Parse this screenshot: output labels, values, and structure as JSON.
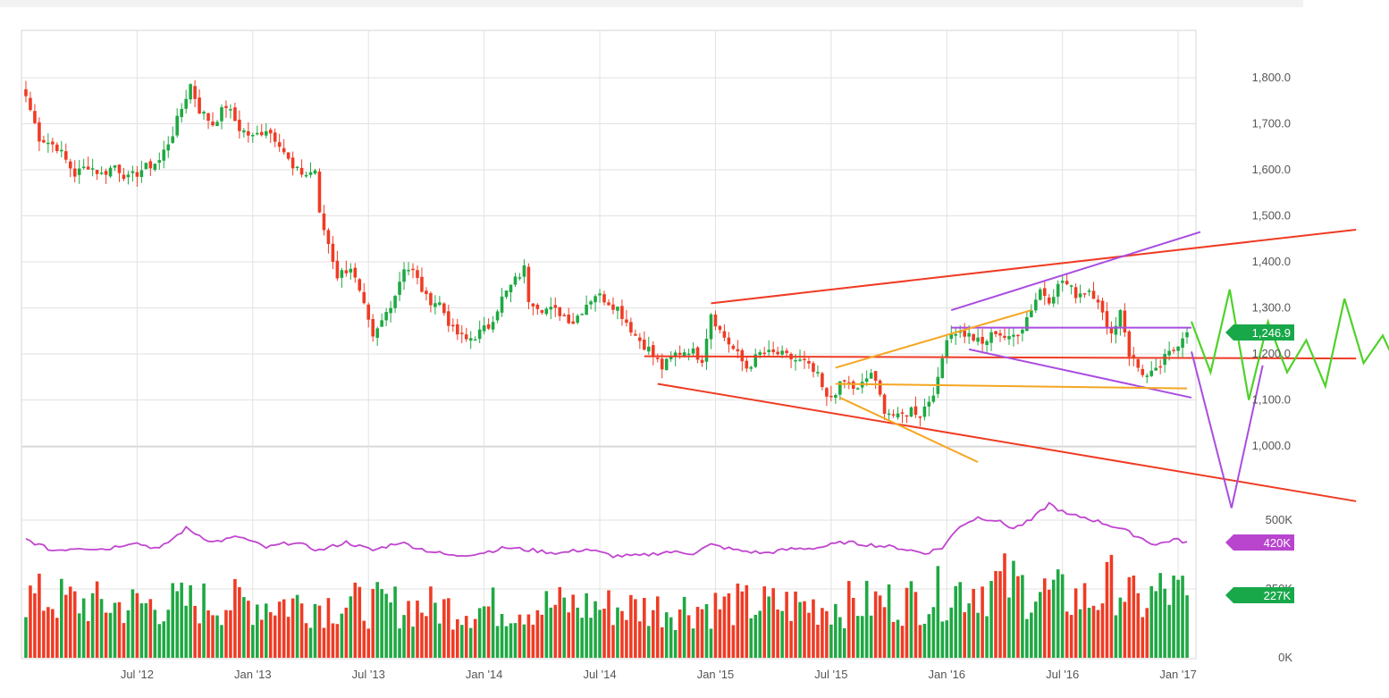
{
  "chart_data": [
    {
      "type": "candlestick",
      "panel": "price",
      "title": "",
      "y_ticks": [
        {
          "label": "1,800.0",
          "value": 1800
        },
        {
          "label": "1,700.0",
          "value": 1700
        },
        {
          "label": "1,600.0",
          "value": 1600
        },
        {
          "label": "1,500.0",
          "value": 1500
        },
        {
          "label": "1,400.0",
          "value": 1400
        },
        {
          "label": "1,300.0",
          "value": 1300
        },
        {
          "label": "1,200.0",
          "value": 1200
        },
        {
          "label": "1,100.0",
          "value": 1100
        },
        {
          "label": "1,000.0",
          "value": 1000
        }
      ],
      "ylim": [
        980,
        1880
      ],
      "x_ticks": [
        {
          "label": "Jul '12",
          "week": 25
        },
        {
          "label": "Jan '13",
          "week": 51
        },
        {
          "label": "Jul '13",
          "week": 77
        },
        {
          "label": "Jan '14",
          "week": 103
        },
        {
          "label": "Jul '14",
          "week": 129
        },
        {
          "label": "Jan '15",
          "week": 155
        },
        {
          "label": "Jul '15",
          "week": 181
        },
        {
          "label": "Jan '16",
          "week": 207
        },
        {
          "label": "Jul '16",
          "week": 233
        },
        {
          "label": "Jan '17",
          "week": 259
        }
      ],
      "xlim": [
        -1,
        263
      ],
      "weekly_close_anchors": [
        [
          0,
          1760
        ],
        [
          3,
          1670
        ],
        [
          7,
          1650
        ],
        [
          11,
          1590
        ],
        [
          14,
          1610
        ],
        [
          17,
          1590
        ],
        [
          20,
          1610
        ],
        [
          23,
          1580
        ],
        [
          26,
          1600
        ],
        [
          30,
          1620
        ],
        [
          33,
          1680
        ],
        [
          36,
          1760
        ],
        [
          37,
          1785
        ],
        [
          39,
          1730
        ],
        [
          42,
          1700
        ],
        [
          45,
          1740
        ],
        [
          48,
          1690
        ],
        [
          51,
          1670
        ],
        [
          54,
          1690
        ],
        [
          57,
          1660
        ],
        [
          60,
          1600
        ],
        [
          63,
          1590
        ],
        [
          65,
          1600
        ],
        [
          66,
          1500
        ],
        [
          68,
          1440
        ],
        [
          70,
          1370
        ],
        [
          73,
          1390
        ],
        [
          76,
          1300
        ],
        [
          78,
          1230
        ],
        [
          80,
          1270
        ],
        [
          83,
          1330
        ],
        [
          85,
          1390
        ],
        [
          87,
          1380
        ],
        [
          90,
          1320
        ],
        [
          93,
          1310
        ],
        [
          96,
          1250
        ],
        [
          99,
          1230
        ],
        [
          101,
          1240
        ],
        [
          104,
          1260
        ],
        [
          107,
          1320
        ],
        [
          110,
          1360
        ],
        [
          112,
          1385
        ],
        [
          113,
          1320
        ],
        [
          116,
          1300
        ],
        [
          120,
          1290
        ],
        [
          123,
          1270
        ],
        [
          126,
          1310
        ],
        [
          128,
          1330
        ],
        [
          130,
          1320
        ],
        [
          133,
          1300
        ],
        [
          137,
          1240
        ],
        [
          140,
          1210
        ],
        [
          143,
          1170
        ],
        [
          146,
          1200
        ],
        [
          149,
          1210
        ],
        [
          152,
          1190
        ],
        [
          154,
          1290
        ],
        [
          156,
          1250
        ],
        [
          159,
          1210
        ],
        [
          162,
          1170
        ],
        [
          165,
          1200
        ],
        [
          169,
          1200
        ],
        [
          172,
          1190
        ],
        [
          175,
          1180
        ],
        [
          178,
          1150
        ],
        [
          180,
          1100
        ],
        [
          182,
          1120
        ],
        [
          184,
          1140
        ],
        [
          187,
          1120
        ],
        [
          190,
          1160
        ],
        [
          193,
          1080
        ],
        [
          196,
          1060
        ],
        [
          199,
          1080
        ],
        [
          201,
          1070
        ],
        [
          203,
          1100
        ],
        [
          205,
          1140
        ],
        [
          207,
          1240
        ],
        [
          209,
          1250
        ],
        [
          212,
          1240
        ],
        [
          215,
          1220
        ],
        [
          218,
          1250
        ],
        [
          221,
          1230
        ],
        [
          224,
          1260
        ],
        [
          226,
          1300
        ],
        [
          228,
          1340
        ],
        [
          230,
          1320
        ],
        [
          233,
          1360
        ],
        [
          236,
          1330
        ],
        [
          239,
          1340
        ],
        [
          241,
          1320
        ],
        [
          243,
          1250
        ],
        [
          245,
          1260
        ],
        [
          246,
          1300
        ],
        [
          248,
          1200
        ],
        [
          250,
          1170
        ],
        [
          252,
          1150
        ],
        [
          254,
          1160
        ],
        [
          256,
          1190
        ],
        [
          258,
          1210
        ],
        [
          260,
          1240
        ],
        [
          261,
          1246.9
        ]
      ],
      "annotations": {
        "last_price_label": "1,246.9",
        "projection_zigzag_prices": [
          1270,
          1160,
          1340,
          1100,
          1270,
          1160,
          1230,
          1130,
          1320,
          1180,
          1240,
          1150
        ]
      },
      "colors": {
        "up": "#1fa843",
        "down": "#ef3b24",
        "last_price_badge": "#18a84a"
      }
    },
    {
      "type": "bar",
      "panel": "volume",
      "y_ticks": [
        {
          "label": "500K",
          "value": 500
        },
        {
          "label": "250K",
          "value": 250
        },
        {
          "label": "0K",
          "value": 0
        }
      ],
      "ylim": [
        0,
        575
      ],
      "units": "K",
      "volume_anchors": [
        [
          0,
          220
        ],
        [
          20,
          190
        ],
        [
          40,
          200
        ],
        [
          60,
          200
        ],
        [
          80,
          190
        ],
        [
          100,
          180
        ],
        [
          120,
          190
        ],
        [
          140,
          180
        ],
        [
          160,
          190
        ],
        [
          180,
          190
        ],
        [
          200,
          210
        ],
        [
          210,
          250
        ],
        [
          220,
          270
        ],
        [
          230,
          230
        ],
        [
          240,
          210
        ],
        [
          245,
          280
        ],
        [
          250,
          190
        ],
        [
          255,
          240
        ],
        [
          261,
          227
        ]
      ],
      "volume_moving_average_anchors": [
        [
          0,
          430
        ],
        [
          6,
          390
        ],
        [
          12,
          400
        ],
        [
          18,
          395
        ],
        [
          24,
          420
        ],
        [
          30,
          395
        ],
        [
          36,
          470
        ],
        [
          42,
          420
        ],
        [
          48,
          440
        ],
        [
          54,
          400
        ],
        [
          60,
          420
        ],
        [
          66,
          390
        ],
        [
          72,
          420
        ],
        [
          78,
          390
        ],
        [
          84,
          420
        ],
        [
          90,
          390
        ],
        [
          96,
          370
        ],
        [
          102,
          380
        ],
        [
          108,
          400
        ],
        [
          114,
          390
        ],
        [
          120,
          380
        ],
        [
          126,
          395
        ],
        [
          132,
          370
        ],
        [
          138,
          370
        ],
        [
          144,
          385
        ],
        [
          150,
          380
        ],
        [
          154,
          410
        ],
        [
          160,
          390
        ],
        [
          166,
          380
        ],
        [
          172,
          395
        ],
        [
          178,
          400
        ],
        [
          184,
          420
        ],
        [
          190,
          410
        ],
        [
          196,
          400
        ],
        [
          202,
          380
        ],
        [
          206,
          400
        ],
        [
          210,
          480
        ],
        [
          214,
          510
        ],
        [
          218,
          500
        ],
        [
          222,
          470
        ],
        [
          226,
          500
        ],
        [
          230,
          560
        ],
        [
          234,
          520
        ],
        [
          238,
          510
        ],
        [
          242,
          490
        ],
        [
          246,
          470
        ],
        [
          250,
          440
        ],
        [
          254,
          410
        ],
        [
          258,
          430
        ],
        [
          261,
          420
        ]
      ],
      "latest_moving_average_label": "420K",
      "latest_volume_label": "227K",
      "colors": {
        "up": "#1fa843",
        "down": "#ef3b24",
        "moving_average": "#c045cf",
        "ma_badge": "#b945cf",
        "volume_badge": "#18a84a"
      }
    }
  ],
  "drawings": {
    "colors": {
      "red": "#ef3b24",
      "purple": "#a94de0",
      "orange": "#f5a623",
      "green": "#4fd12a"
    }
  }
}
